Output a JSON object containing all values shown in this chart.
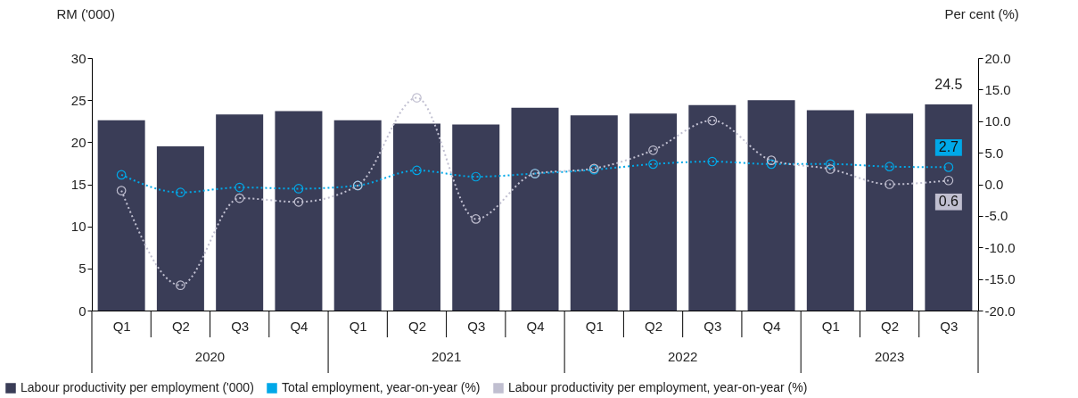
{
  "chart_data": {
    "type": "bar",
    "categories": [
      "Q1",
      "Q2",
      "Q3",
      "Q4",
      "Q1",
      "Q2",
      "Q3",
      "Q4",
      "Q1",
      "Q2",
      "Q3",
      "Q4",
      "Q1",
      "Q2",
      "Q3"
    ],
    "annotations": [
      "2020",
      "2021",
      "2022",
      "2023"
    ],
    "ylabel": "RM ('000)",
    "y2label": "Per cent (%)",
    "ylim": [
      0,
      30
    ],
    "yticks": [
      0,
      5,
      10,
      15,
      20,
      25,
      30
    ],
    "y2lim": [
      -20,
      20
    ],
    "y2ticks": [
      {
        "value": -20,
        "label": "-20.0"
      },
      {
        "value": -15,
        "label": "-15.0"
      },
      {
        "value": -10,
        "label": "-10.0"
      },
      {
        "value": -5,
        "label": "-5.0"
      },
      {
        "value": 0,
        "label": "0.0"
      },
      {
        "value": 5,
        "label": "5.0"
      },
      {
        "value": 10,
        "label": "10.0"
      },
      {
        "value": 15,
        "label": "15.0"
      },
      {
        "value": 20,
        "label": "20.0"
      }
    ],
    "series": [
      {
        "name": "Labour productivity per employment ('000)",
        "color": "#3a3d57",
        "values": [
          22.6,
          19.5,
          23.3,
          23.7,
          22.6,
          22.2,
          22.1,
          24.1,
          23.2,
          23.4,
          24.4,
          25.0,
          23.8,
          23.4,
          24.5
        ],
        "value_labels": [
          null,
          null,
          null,
          null,
          null,
          null,
          null,
          null,
          null,
          null,
          null,
          null,
          null,
          null,
          "24.5"
        ]
      },
      {
        "name": "Total employment, year-on-year (%)",
        "type": "line",
        "axis": "y2",
        "color": "#00a8e8",
        "values": [
          1.5,
          -1.3,
          -0.5,
          -0.7,
          -0.2,
          2.2,
          1.2,
          1.7,
          2.3,
          3.2,
          3.6,
          3.2,
          3.2,
          2.8,
          2.7
        ],
        "value_labels": [
          null,
          null,
          null,
          null,
          null,
          null,
          null,
          null,
          null,
          null,
          null,
          null,
          null,
          null,
          "2.7"
        ]
      },
      {
        "name": "Labour productivity per employment, year-on-year (%)",
        "type": "line",
        "axis": "y2",
        "color": "#c0bfd0",
        "values": [
          -1.0,
          -16.0,
          -2.2,
          -2.8,
          -0.2,
          13.7,
          -5.5,
          1.7,
          2.5,
          5.4,
          10.1,
          3.8,
          2.4,
          0.0,
          0.6
        ],
        "value_labels": [
          null,
          null,
          null,
          null,
          null,
          null,
          null,
          null,
          null,
          null,
          null,
          null,
          null,
          null,
          "0.6"
        ]
      }
    ],
    "marker": "circle",
    "line_style": "dotted",
    "grid": false,
    "legend": "bottom"
  }
}
